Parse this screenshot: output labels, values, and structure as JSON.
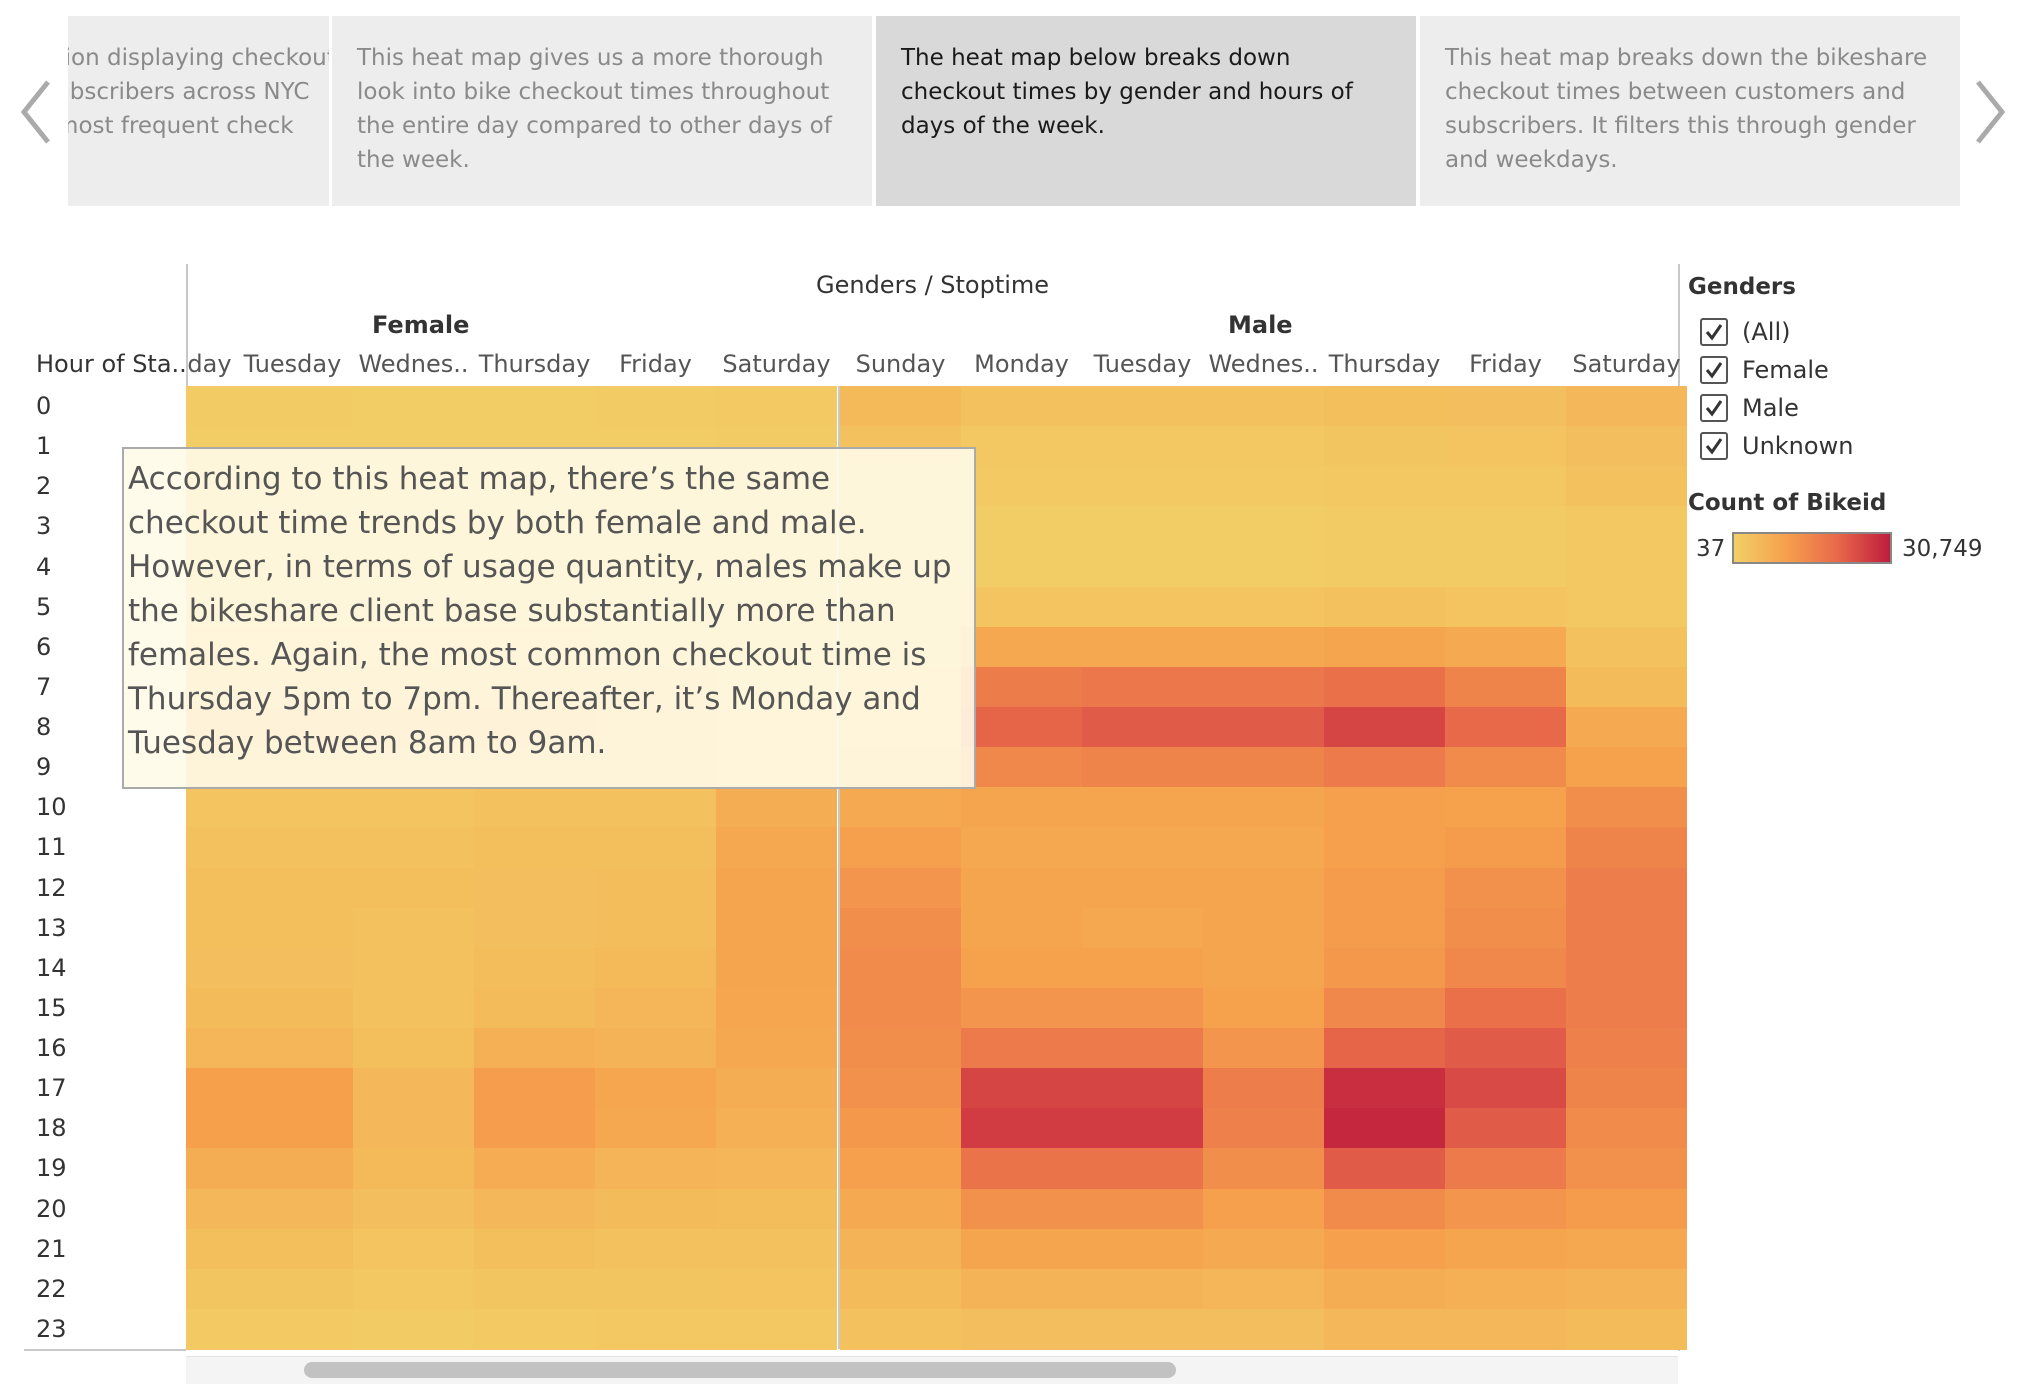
{
  "story_nav": {
    "prev_icon": "chevron-left-icon",
    "next_icon": "chevron-right-icon",
    "points": [
      {
        "text": "A visualization displaying checkout times for subscribers across NYC to see the most frequent check out",
        "active": false
      },
      {
        "text": "This heat map gives us a more thorough look into bike checkout times throughout the entire day compared to other days of the week.",
        "active": false
      },
      {
        "text": "The heat map below breaks down checkout times by gender and hours of days of the week.",
        "active": true
      },
      {
        "text": "This heat map breaks down the bikeshare checkout times between customers and subscribers. It filters this through gender and weekdays.",
        "active": false
      }
    ]
  },
  "heatmap": {
    "column_header": "Genders / Stoptime",
    "row_header": "Hour of Sta..",
    "female_label": "Female",
    "male_label": "Male",
    "female_days_visible": [
      "day",
      "Tuesday",
      "Wednes..",
      "Thursday",
      "Friday",
      "Saturday"
    ],
    "male_days": [
      "Sunday",
      "Monday",
      "Tuesday",
      "Wednes..",
      "Thursday",
      "Friday",
      "Saturday"
    ],
    "hours": [
      "0",
      "1",
      "2",
      "3",
      "4",
      "5",
      "6",
      "7",
      "8",
      "9",
      "10",
      "11",
      "12",
      "13",
      "14",
      "15",
      "16",
      "17",
      "18",
      "19",
      "20",
      "21",
      "22",
      "23"
    ]
  },
  "chart_data": {
    "type": "heatmap",
    "title": "Genders / Stoptime",
    "ylabel": "Hour of Sta..",
    "x_groups": [
      "Female",
      "Male"
    ],
    "color_scale": {
      "min": 37,
      "max": 30749,
      "colors": [
        "#f2cf66",
        "#f6a04c",
        "#e8684a",
        "#bf1c3d"
      ]
    },
    "female_columns": [
      "Monday (partial)",
      "Tuesday",
      "Wednes..",
      "Thursday",
      "Friday",
      "Saturday"
    ],
    "female_values": [
      [
        0.03,
        0.03,
        0.02,
        0.02,
        0.03,
        0.04
      ],
      [
        0.02,
        0.02,
        0.02,
        0.02,
        0.02,
        0.03
      ],
      [
        0.01,
        0.01,
        0.01,
        0.01,
        0.01,
        0.02
      ],
      [
        0.01,
        0.01,
        0.01,
        0.01,
        0.01,
        0.02
      ],
      [
        0.01,
        0.01,
        0.01,
        0.01,
        0.01,
        0.01
      ],
      [
        0.02,
        0.02,
        0.02,
        0.02,
        0.02,
        0.01
      ],
      [
        0.08,
        0.08,
        0.08,
        0.08,
        0.07,
        0.03
      ],
      [
        0.18,
        0.18,
        0.18,
        0.18,
        0.16,
        0.05
      ],
      [
        0.22,
        0.22,
        0.22,
        0.22,
        0.2,
        0.08
      ],
      [
        0.16,
        0.16,
        0.16,
        0.16,
        0.15,
        0.1
      ],
      [
        0.08,
        0.08,
        0.08,
        0.1,
        0.09,
        0.24
      ],
      [
        0.1,
        0.1,
        0.1,
        0.11,
        0.11,
        0.28
      ],
      [
        0.11,
        0.11,
        0.11,
        0.12,
        0.13,
        0.3
      ],
      [
        0.11,
        0.11,
        0.1,
        0.12,
        0.13,
        0.3
      ],
      [
        0.12,
        0.12,
        0.1,
        0.13,
        0.15,
        0.3
      ],
      [
        0.14,
        0.14,
        0.1,
        0.14,
        0.18,
        0.29
      ],
      [
        0.18,
        0.18,
        0.11,
        0.22,
        0.2,
        0.28
      ],
      [
        0.33,
        0.33,
        0.17,
        0.35,
        0.29,
        0.24
      ],
      [
        0.33,
        0.33,
        0.17,
        0.35,
        0.28,
        0.22
      ],
      [
        0.24,
        0.24,
        0.15,
        0.25,
        0.19,
        0.18
      ],
      [
        0.16,
        0.16,
        0.12,
        0.16,
        0.14,
        0.13
      ],
      [
        0.11,
        0.11,
        0.08,
        0.11,
        0.1,
        0.1
      ],
      [
        0.07,
        0.07,
        0.05,
        0.07,
        0.07,
        0.08
      ],
      [
        0.04,
        0.04,
        0.03,
        0.04,
        0.05,
        0.06
      ]
    ],
    "male_columns": [
      "Sunday",
      "Monday",
      "Tuesday",
      "Wednes..",
      "Thursday",
      "Friday",
      "Saturday"
    ],
    "male_values": [
      [
        0.15,
        0.1,
        0.09,
        0.09,
        0.11,
        0.12,
        0.17
      ],
      [
        0.1,
        0.06,
        0.06,
        0.06,
        0.07,
        0.08,
        0.12
      ],
      [
        0.07,
        0.04,
        0.04,
        0.04,
        0.05,
        0.05,
        0.09
      ],
      [
        0.05,
        0.02,
        0.02,
        0.02,
        0.03,
        0.03,
        0.06
      ],
      [
        0.05,
        0.02,
        0.02,
        0.02,
        0.03,
        0.03,
        0.05
      ],
      [
        0.05,
        0.08,
        0.08,
        0.08,
        0.09,
        0.08,
        0.05
      ],
      [
        0.07,
        0.28,
        0.28,
        0.28,
        0.3,
        0.26,
        0.09
      ],
      [
        0.08,
        0.55,
        0.58,
        0.58,
        0.62,
        0.5,
        0.14
      ],
      [
        0.12,
        0.68,
        0.72,
        0.72,
        0.82,
        0.66,
        0.26
      ],
      [
        0.18,
        0.48,
        0.5,
        0.5,
        0.56,
        0.46,
        0.32
      ],
      [
        0.26,
        0.3,
        0.3,
        0.3,
        0.34,
        0.32,
        0.44
      ],
      [
        0.34,
        0.28,
        0.28,
        0.28,
        0.34,
        0.36,
        0.5
      ],
      [
        0.4,
        0.3,
        0.3,
        0.3,
        0.36,
        0.42,
        0.54
      ],
      [
        0.44,
        0.3,
        0.28,
        0.3,
        0.36,
        0.44,
        0.54
      ],
      [
        0.46,
        0.32,
        0.32,
        0.3,
        0.38,
        0.48,
        0.54
      ],
      [
        0.46,
        0.4,
        0.4,
        0.32,
        0.48,
        0.62,
        0.54
      ],
      [
        0.44,
        0.56,
        0.56,
        0.4,
        0.68,
        0.72,
        0.52
      ],
      [
        0.42,
        0.82,
        0.82,
        0.54,
        0.92,
        0.8,
        0.5
      ],
      [
        0.38,
        0.86,
        0.86,
        0.52,
        0.95,
        0.72,
        0.46
      ],
      [
        0.34,
        0.6,
        0.6,
        0.44,
        0.72,
        0.56,
        0.42
      ],
      [
        0.26,
        0.42,
        0.42,
        0.34,
        0.46,
        0.4,
        0.36
      ],
      [
        0.2,
        0.3,
        0.3,
        0.26,
        0.34,
        0.3,
        0.28
      ],
      [
        0.14,
        0.2,
        0.2,
        0.18,
        0.24,
        0.22,
        0.2
      ],
      [
        0.1,
        0.12,
        0.12,
        0.12,
        0.16,
        0.16,
        0.14
      ]
    ]
  },
  "annotation": {
    "text": "According to this heat map, there’s the same checkout time trends by both female and male. However, in terms of usage quantity, males make up the bikeshare client base substantially more than females. Again, the most common checkout time is Thursday 5pm to 7pm. Thereafter, it’s Monday and Tuesday between 8am to 9am."
  },
  "legend": {
    "genders_title": "Genders",
    "gender_filters": [
      {
        "label": "(All)",
        "checked": true
      },
      {
        "label": "Female",
        "checked": true
      },
      {
        "label": "Male",
        "checked": true
      },
      {
        "label": "Unknown",
        "checked": true
      }
    ],
    "count_title": "Count of Bikeid",
    "min_label": "37",
    "max_label": "30,749"
  }
}
